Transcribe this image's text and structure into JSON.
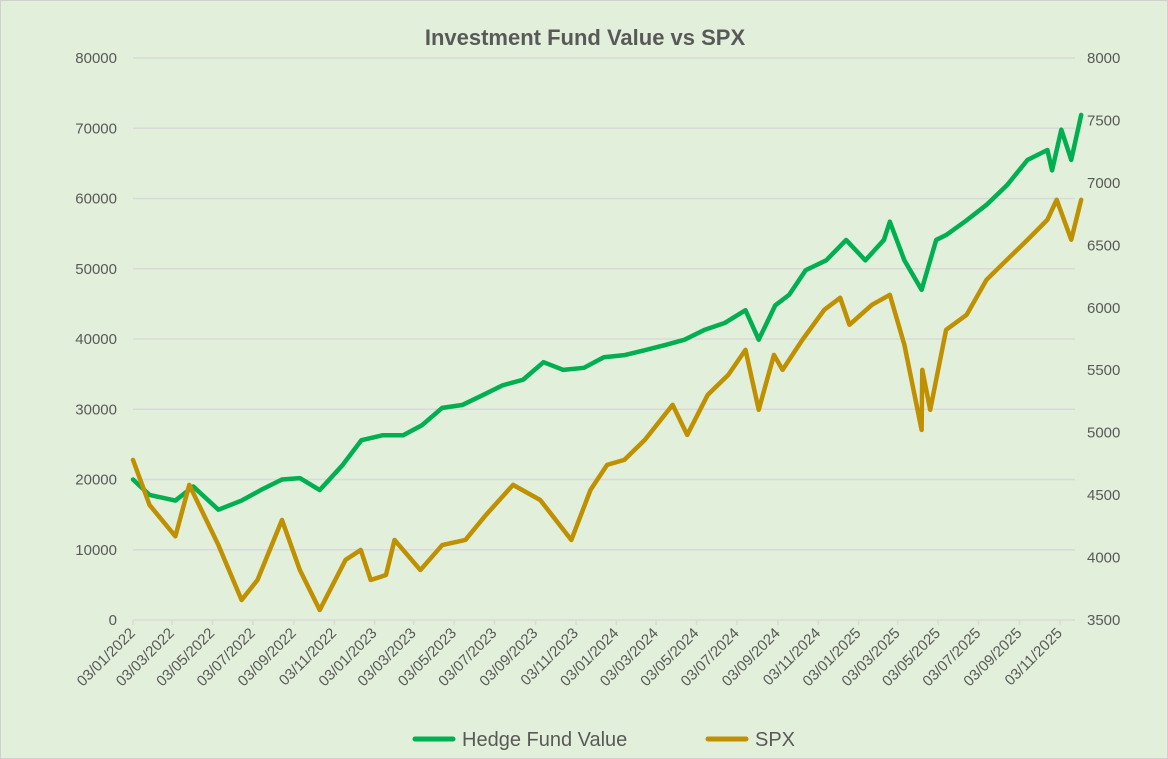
{
  "chart_data": {
    "type": "line",
    "title": "Investment Fund Value vs SPX",
    "xlabel": "",
    "ylabel": "",
    "y_left_lim": [
      0,
      80000
    ],
    "y_left_ticks": [
      0,
      10000,
      20000,
      30000,
      40000,
      50000,
      60000,
      70000,
      80000
    ],
    "y_right_lim": [
      3500,
      8000
    ],
    "y_right_ticks": [
      3500,
      4000,
      4500,
      5000,
      5500,
      6000,
      6500,
      7000,
      7500,
      8000
    ],
    "x_ticks": [
      "03/01/2022",
      "03/03/2022",
      "03/05/2022",
      "03/07/2022",
      "03/09/2022",
      "03/11/2022",
      "03/01/2023",
      "03/03/2023",
      "03/05/2023",
      "03/07/2023",
      "03/09/2023",
      "03/11/2023",
      "03/01/2024",
      "03/03/2024",
      "03/05/2024",
      "03/07/2024",
      "03/09/2024",
      "03/11/2024",
      "03/01/2025",
      "03/03/2025",
      "03/05/2025",
      "03/07/2025",
      "03/09/2025",
      "03/11/2025"
    ],
    "grid": "horizontal",
    "legend": "bottom",
    "series": [
      {
        "name": "Hedge Fund Value",
        "axis": "left",
        "color": "#00b050",
        "points": [
          [
            "2022-01-03",
            20000
          ],
          [
            "2022-01-28",
            17800
          ],
          [
            "2022-03-08",
            17000
          ],
          [
            "2022-04-04",
            19000
          ],
          [
            "2022-05-12",
            15700
          ],
          [
            "2022-06-16",
            17000
          ],
          [
            "2022-07-15",
            18500
          ],
          [
            "2022-08-16",
            20000
          ],
          [
            "2022-09-12",
            20200
          ],
          [
            "2022-10-12",
            18500
          ],
          [
            "2022-11-15",
            22000
          ],
          [
            "2022-12-14",
            25600
          ],
          [
            "2023-01-15",
            26300
          ],
          [
            "2023-02-15",
            26300
          ],
          [
            "2023-03-15",
            27700
          ],
          [
            "2023-04-15",
            30200
          ],
          [
            "2023-05-15",
            30600
          ],
          [
            "2023-06-15",
            32000
          ],
          [
            "2023-07-15",
            33400
          ],
          [
            "2023-08-15",
            34200
          ],
          [
            "2023-09-15",
            36700
          ],
          [
            "2023-10-15",
            35600
          ],
          [
            "2023-11-15",
            35900
          ],
          [
            "2023-12-15",
            37400
          ],
          [
            "2024-01-15",
            37700
          ],
          [
            "2024-02-15",
            38400
          ],
          [
            "2024-03-15",
            39100
          ],
          [
            "2024-04-15",
            39900
          ],
          [
            "2024-05-15",
            41300
          ],
          [
            "2024-06-15",
            42300
          ],
          [
            "2024-07-16",
            44100
          ],
          [
            "2024-08-05",
            39900
          ],
          [
            "2024-08-30",
            44800
          ],
          [
            "2024-09-20",
            46300
          ],
          [
            "2024-10-15",
            49800
          ],
          [
            "2024-11-15",
            51200
          ],
          [
            "2024-12-15",
            54100
          ],
          [
            "2025-01-13",
            51200
          ],
          [
            "2025-02-10",
            54100
          ],
          [
            "2025-02-19",
            56700
          ],
          [
            "2025-03-13",
            51200
          ],
          [
            "2025-04-08",
            47000
          ],
          [
            "2025-04-30",
            54100
          ],
          [
            "2025-05-15",
            54800
          ],
          [
            "2025-06-15",
            56900
          ],
          [
            "2025-07-15",
            59100
          ],
          [
            "2025-08-15",
            61900
          ],
          [
            "2025-09-15",
            65500
          ],
          [
            "2025-10-15",
            66900
          ],
          [
            "2025-10-22",
            64000
          ],
          [
            "2025-11-05",
            69800
          ],
          [
            "2025-11-20",
            65500
          ],
          [
            "2025-12-05",
            71900
          ]
        ]
      },
      {
        "name": "SPX",
        "axis": "right",
        "color": "#bf9000",
        "points": [
          [
            "2022-01-03",
            4782
          ],
          [
            "2022-01-28",
            4421
          ],
          [
            "2022-03-08",
            4170
          ],
          [
            "2022-03-29",
            4582
          ],
          [
            "2022-05-12",
            4100
          ],
          [
            "2022-06-16",
            3660
          ],
          [
            "2022-07-10",
            3820
          ],
          [
            "2022-08-16",
            4301
          ],
          [
            "2022-09-12",
            3900
          ],
          [
            "2022-10-12",
            3580
          ],
          [
            "2022-11-20",
            3981
          ],
          [
            "2022-12-13",
            4061
          ],
          [
            "2022-12-28",
            3820
          ],
          [
            "2023-01-20",
            3860
          ],
          [
            "2023-02-02",
            4141
          ],
          [
            "2023-03-13",
            3900
          ],
          [
            "2023-04-15",
            4100
          ],
          [
            "2023-05-20",
            4141
          ],
          [
            "2023-06-20",
            4341
          ],
          [
            "2023-07-31",
            4582
          ],
          [
            "2023-09-10",
            4461
          ],
          [
            "2023-10-27",
            4141
          ],
          [
            "2023-11-25",
            4542
          ],
          [
            "2023-12-20",
            4742
          ],
          [
            "2024-01-15",
            4782
          ],
          [
            "2024-02-15",
            4942
          ],
          [
            "2024-03-28",
            5223
          ],
          [
            "2024-04-19",
            4982
          ],
          [
            "2024-05-20",
            5303
          ],
          [
            "2024-06-20",
            5463
          ],
          [
            "2024-07-16",
            5663
          ],
          [
            "2024-08-05",
            5183
          ],
          [
            "2024-08-28",
            5623
          ],
          [
            "2024-09-10",
            5503
          ],
          [
            "2024-10-10",
            5744
          ],
          [
            "2024-11-12",
            5984
          ],
          [
            "2024-12-06",
            6080
          ],
          [
            "2024-12-20",
            5864
          ],
          [
            "2025-01-23",
            6024
          ],
          [
            "2025-02-19",
            6104
          ],
          [
            "2025-03-13",
            5703
          ],
          [
            "2025-04-08",
            5022
          ],
          [
            "2025-04-09",
            5503
          ],
          [
            "2025-04-21",
            5183
          ],
          [
            "2025-05-15",
            5824
          ],
          [
            "2025-06-15",
            5944
          ],
          [
            "2025-07-15",
            6224
          ],
          [
            "2025-08-15",
            6385
          ],
          [
            "2025-09-15",
            6545
          ],
          [
            "2025-10-15",
            6705
          ],
          [
            "2025-10-29",
            6865
          ],
          [
            "2025-11-20",
            6545
          ],
          [
            "2025-12-05",
            6865
          ]
        ]
      }
    ]
  }
}
